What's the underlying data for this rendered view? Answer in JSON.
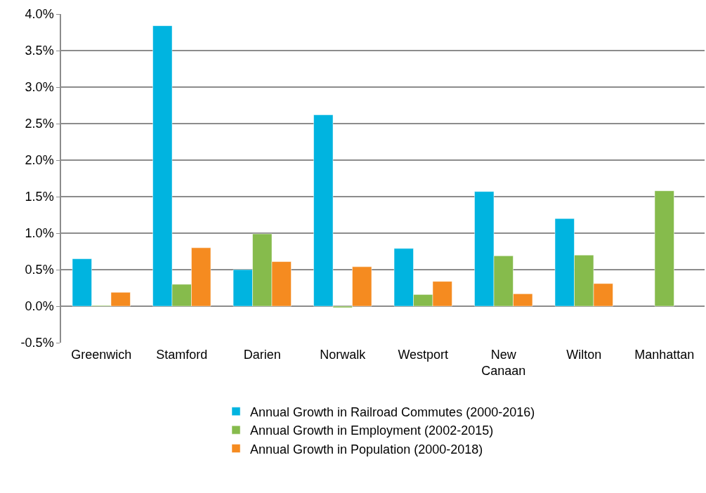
{
  "chart_data": {
    "type": "bar",
    "categories": [
      "Greenwich",
      "Stamford",
      "Darien",
      "Norwalk",
      "Westport",
      "New Canaan",
      "Wilton",
      "Manhattan"
    ],
    "series": [
      {
        "name": "Annual Growth in Railroad Commutes (2000-2016)",
        "color": "#00b4e0",
        "values": [
          0.65,
          3.84,
          0.5,
          2.62,
          0.79,
          1.57,
          1.2,
          null
        ]
      },
      {
        "name": "Annual Growth in Employment (2002-2015)",
        "color": "#86bb4c",
        "values": [
          0.01,
          0.3,
          0.99,
          -0.02,
          0.16,
          0.69,
          0.7,
          1.58
        ]
      },
      {
        "name": "Annual Growth in Population (2000-2018)",
        "color": "#f58b20",
        "values": [
          0.19,
          0.8,
          0.61,
          0.54,
          0.34,
          0.17,
          0.31,
          null
        ]
      }
    ],
    "ylim": [
      -0.5,
      4.0
    ],
    "yticks": [
      {
        "value": -0.5,
        "label": "-0.5%"
      },
      {
        "value": 0,
        "label": "0.0%"
      },
      {
        "value": 0.5,
        "label": "0.5%"
      },
      {
        "value": 1,
        "label": "1.0%"
      },
      {
        "value": 1.5,
        "label": "1.5%"
      },
      {
        "value": 2,
        "label": "2.0%"
      },
      {
        "value": 2.5,
        "label": "2.5%"
      },
      {
        "value": 3,
        "label": "3.0%"
      },
      {
        "value": 3.5,
        "label": "3.5%"
      },
      {
        "value": 4,
        "label": "4.0%"
      }
    ],
    "grid": "y",
    "legend": "bottom"
  }
}
